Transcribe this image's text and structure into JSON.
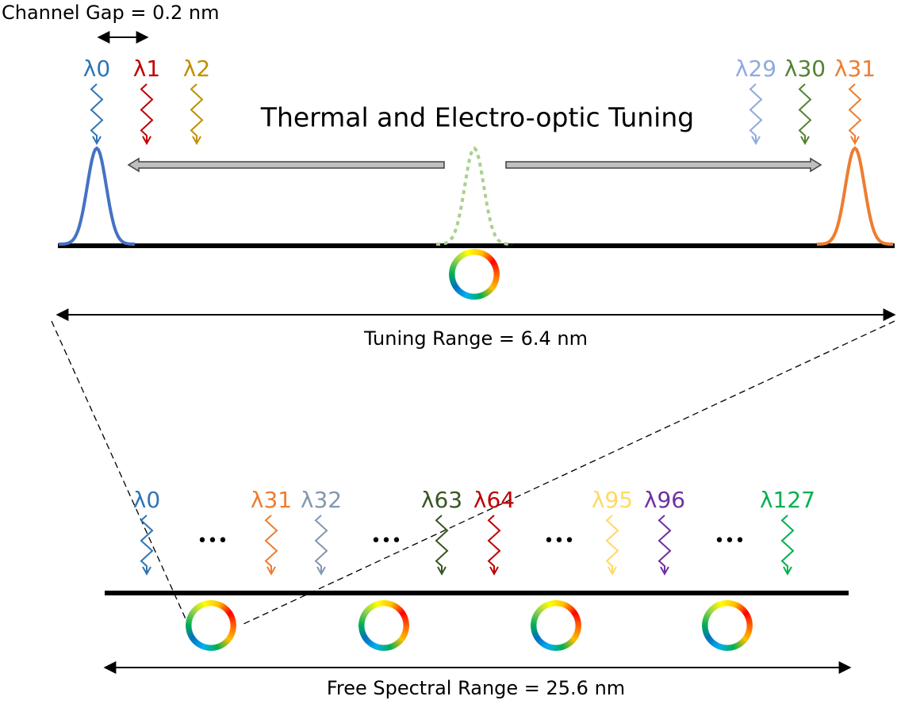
{
  "top": {
    "channel_gap": "Channel Gap = 0.2 nm",
    "title": "Thermal and Electro-optic Tuning",
    "range": "Tuning Range = 6.4 nm",
    "channels": [
      {
        "label": "λ0",
        "color": "#2e75b6"
      },
      {
        "label": "λ1",
        "color": "#c00000"
      },
      {
        "label": "λ2",
        "color": "#bf9000"
      },
      {
        "label": "λ29",
        "color": "#8faadc"
      },
      {
        "label": "λ30",
        "color": "#548235"
      },
      {
        "label": "λ31",
        "color": "#ed7d31"
      }
    ]
  },
  "bottom": {
    "range": "Free Spectral Range = 25.6 nm",
    "ellipses": [
      "•••",
      "•••",
      "•••",
      "•••"
    ],
    "channels": [
      {
        "label": "λ0",
        "color": "#2e75b6"
      },
      {
        "label": "λ31",
        "color": "#ed7d31"
      },
      {
        "label": "λ32",
        "color": "#8497b0"
      },
      {
        "label": "λ63",
        "color": "#375623"
      },
      {
        "label": "λ64",
        "color": "#c00000"
      },
      {
        "label": "λ95",
        "color": "#ffd966"
      },
      {
        "label": "λ96",
        "color": "#7030a0"
      },
      {
        "label": "λ127",
        "color": "#00b050"
      }
    ]
  }
}
